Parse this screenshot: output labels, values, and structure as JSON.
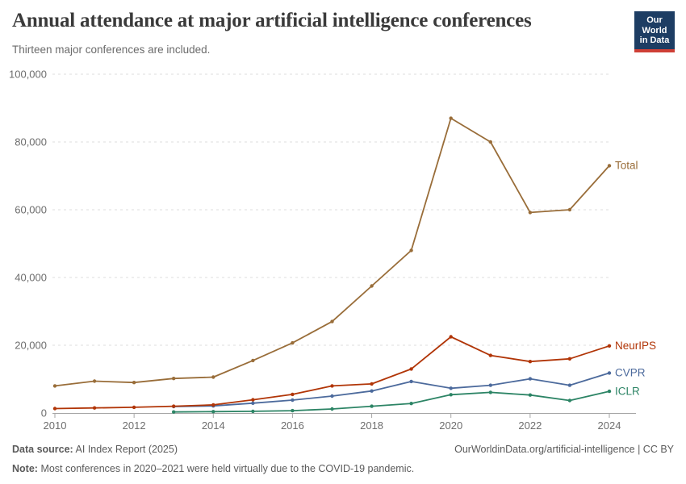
{
  "header": {
    "title": "Annual attendance at major artificial intelligence conferences",
    "subtitle": "Thirteen major conferences are included.",
    "logo": {
      "line1": "Our World",
      "line2": "in Data",
      "bg_color": "#1d3d63",
      "accent_color": "#cf3f36"
    }
  },
  "chart_data": {
    "type": "line",
    "title": "Annual attendance at major artificial intelligence conferences",
    "subtitle": "Thirteen major conferences are included.",
    "xlabel": "",
    "ylabel": "",
    "x_range": [
      2010,
      2024
    ],
    "ylim": [
      0,
      100000
    ],
    "grid": "horizontal-dashed",
    "legend_position": "end-of-line-labels",
    "yticks": [
      0,
      20000,
      40000,
      60000,
      80000,
      100000
    ],
    "ytick_labels": [
      "0",
      "20,000",
      "40,000",
      "60,000",
      "80,000",
      "100,000"
    ],
    "xticks": [
      2010,
      2012,
      2014,
      2016,
      2018,
      2020,
      2022,
      2024
    ],
    "series": [
      {
        "name": "Total",
        "color": "#996d39",
        "start_year": 2010,
        "values": [
          8000,
          9400,
          9000,
          10200,
          10600,
          15500,
          20700,
          27000,
          37500,
          48000,
          87000,
          80000,
          59200,
          60000,
          73000
        ]
      },
      {
        "name": "NeurIPS",
        "color": "#b13507",
        "start_year": 2010,
        "values": [
          1300,
          1500,
          1700,
          2000,
          2400,
          3900,
          5500,
          8000,
          8600,
          13000,
          22500,
          17000,
          15200,
          16000,
          19800
        ]
      },
      {
        "name": "CVPR",
        "color": "#4c6a9c",
        "start_year": 2013,
        "values": [
          1900,
          2100,
          2900,
          3800,
          5000,
          6500,
          9300,
          7300,
          8200,
          10100,
          8200,
          11800
        ]
      },
      {
        "name": "ICLR",
        "color": "#2c8465",
        "start_year": 2013,
        "values": [
          300,
          400,
          500,
          700,
          1200,
          2000,
          2800,
          5400,
          6100,
          5300,
          3700,
          6400
        ]
      }
    ]
  },
  "footer": {
    "datasource_label": "Data source:",
    "datasource_value": "AI Index Report (2025)",
    "note_label": "Note:",
    "note_value": "Most conferences in 2020–2021 were held virtually due to the COVID-19 pandemic.",
    "attribution": "OurWorldinData.org/artificial-intelligence | CC BY"
  }
}
